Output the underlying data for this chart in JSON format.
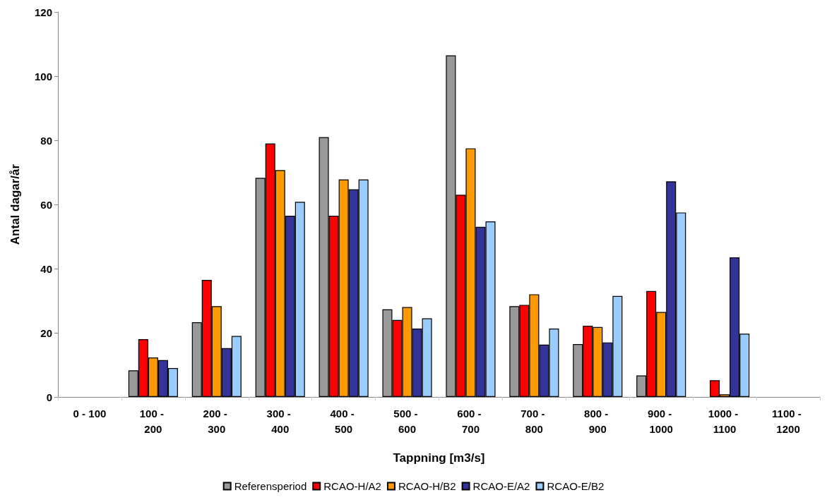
{
  "chart_data": {
    "type": "bar",
    "xlabel": "Tappning [m3/s]",
    "ylabel": "Antal dagar/år",
    "categories": [
      "0 - 100",
      "100 - 200",
      "200 - 300",
      "300 - 400",
      "400 - 500",
      "500 - 600",
      "600 - 700",
      "700 - 800",
      "800 - 900",
      "900 - 1000",
      "1000 - 1100",
      "1100 - 1200"
    ],
    "series": [
      {
        "name": "Referensperiod",
        "color": "#999999",
        "values": [
          null,
          8.3,
          23.3,
          68.3,
          81,
          27.3,
          106.5,
          28.3,
          16.5,
          6.7,
          null,
          null
        ]
      },
      {
        "name": "RCAO-H/A2",
        "color": "#ff0000",
        "values": [
          null,
          18,
          36.5,
          79,
          56.5,
          24,
          63,
          28.7,
          22.2,
          33,
          5.2,
          null
        ]
      },
      {
        "name": "RCAO-H/B2",
        "color": "#ff9900",
        "values": [
          null,
          12.3,
          28.3,
          70.7,
          67.8,
          28,
          77.5,
          32,
          21.8,
          26.5,
          0.8,
          null
        ]
      },
      {
        "name": "RCAO-E/A2",
        "color": "#333399",
        "values": [
          null,
          11.5,
          15.2,
          56.5,
          64.7,
          21.3,
          53,
          16.3,
          17,
          67.2,
          43.5,
          null
        ]
      },
      {
        "name": "RCAO-E/B2",
        "color": "#99ccff",
        "values": [
          null,
          9,
          19,
          60.8,
          67.8,
          24.5,
          54.7,
          21.3,
          31.5,
          57.5,
          19.7,
          null
        ]
      }
    ],
    "ylim": [
      0,
      120
    ],
    "yticks": [
      0,
      20,
      40,
      60,
      80,
      100,
      120
    ],
    "grid": false,
    "legend": "bottom"
  }
}
